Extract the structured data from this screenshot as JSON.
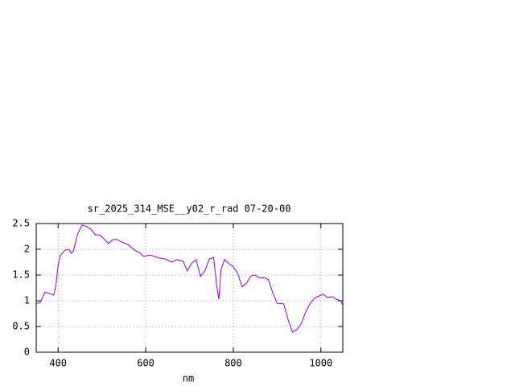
{
  "chart_data": {
    "type": "line",
    "title": "sr_2025_314_MSE__y02_r_rad 07-20-00",
    "xlabel": "nm",
    "x": [
      350,
      360,
      370,
      380,
      390,
      395,
      400,
      405,
      415,
      425,
      430,
      435,
      445,
      455,
      465,
      475,
      485,
      495,
      505,
      515,
      525,
      535,
      545,
      560,
      575,
      585,
      595,
      610,
      630,
      645,
      660,
      670,
      685,
      695,
      705,
      715,
      725,
      735,
      745,
      755,
      762,
      767,
      772,
      780,
      790,
      800,
      810,
      820,
      830,
      840,
      850,
      860,
      870,
      880,
      890,
      900,
      915,
      925,
      935,
      945,
      955,
      965,
      975,
      985,
      995,
      1005,
      1015,
      1025,
      1035,
      1045,
      1050
    ],
    "series": [
      {
        "color": "#9400d3",
        "values": [
          0.94,
          0.98,
          1.17,
          1.14,
          1.11,
          1.3,
          1.69,
          1.88,
          1.98,
          2.0,
          1.92,
          1.97,
          2.31,
          2.47,
          2.44,
          2.39,
          2.28,
          2.28,
          2.2,
          2.11,
          2.19,
          2.19,
          2.14,
          2.09,
          1.98,
          1.94,
          1.86,
          1.89,
          1.83,
          1.81,
          1.75,
          1.8,
          1.77,
          1.58,
          1.73,
          1.8,
          1.47,
          1.58,
          1.81,
          1.84,
          1.3,
          1.03,
          1.61,
          1.8,
          1.72,
          1.66,
          1.53,
          1.27,
          1.34,
          1.48,
          1.5,
          1.44,
          1.45,
          1.41,
          1.16,
          0.95,
          0.94,
          0.64,
          0.39,
          0.44,
          0.55,
          0.78,
          0.94,
          1.05,
          1.09,
          1.13,
          1.06,
          1.08,
          1.03,
          1.0,
          0.91
        ]
      }
    ],
    "xlim": [
      350,
      1050
    ],
    "xticks": [
      400,
      600,
      800,
      1000
    ],
    "ylim": [
      0,
      2.5
    ],
    "yticks": [
      0,
      0.5,
      1,
      1.5,
      2,
      2.5
    ],
    "grid": true
  }
}
